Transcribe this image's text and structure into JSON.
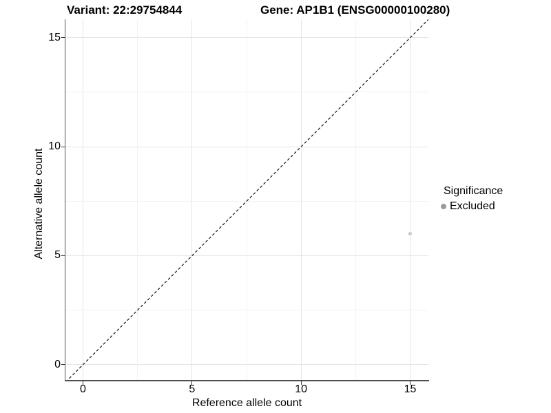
{
  "chart_data": {
    "type": "scatter",
    "titles": {
      "left": "Variant: 22:29754844",
      "right": "Gene: AP1B1 (ENSG00000100280)"
    },
    "xlabel": "Reference allele count",
    "ylabel": "Alternative allele count",
    "x_ticks": [
      0,
      5,
      10,
      15
    ],
    "y_ticks": [
      0,
      5,
      10,
      15
    ],
    "x_minor_ticks": [
      2.5,
      7.5,
      12.5
    ],
    "y_minor_ticks": [
      2.5,
      7.5,
      12.5
    ],
    "xlim": [
      -0.8,
      15.8
    ],
    "ylim": [
      -0.8,
      15.8
    ],
    "grid": "major and minor gridlines, light gray on white",
    "reference_line": {
      "type": "identity y=x",
      "style": "dashed",
      "color": "#111111"
    },
    "series": [
      {
        "name": "Excluded",
        "color": "#bfbfbf",
        "points": [
          {
            "x": 15,
            "y": 6
          }
        ]
      }
    ],
    "legend": {
      "title": "Significance",
      "position": "right",
      "entries": [
        {
          "label": "Excluded",
          "color": "#9a9a9a"
        }
      ]
    },
    "colors": {
      "axis_line": "#4d4d4d",
      "tick": "#333333",
      "grid_major": "#e5e5e5",
      "grid_minor": "#f2f2f2",
      "text": "#000000"
    }
  }
}
